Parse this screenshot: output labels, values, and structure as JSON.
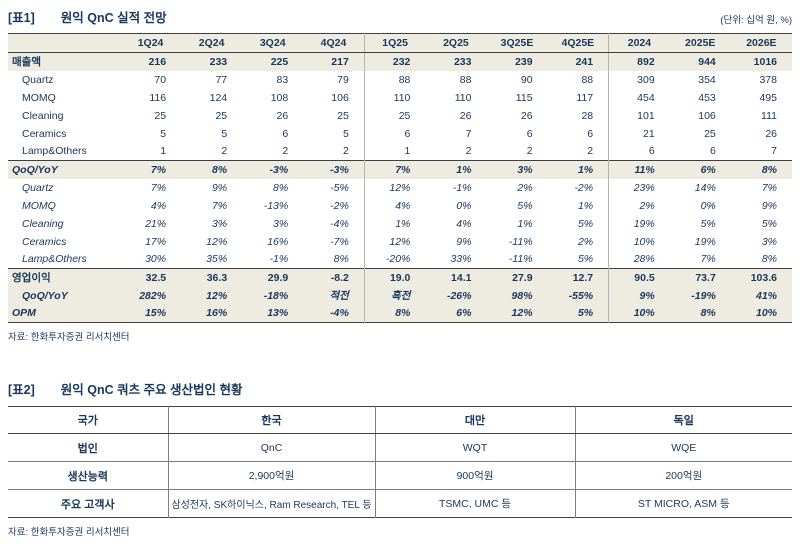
{
  "table1": {
    "tag": "[표1]",
    "title": "원익 QnC 실적 전망",
    "unit_note": "(단위: 십억 원, %)",
    "columns": [
      "1Q24",
      "2Q24",
      "3Q24",
      "4Q24",
      "1Q25",
      "2Q25",
      "3Q25E",
      "4Q25E",
      "2024",
      "2025E",
      "2026E"
    ],
    "rows": [
      {
        "label": "매출액",
        "styles": [
          "bold",
          "highlight"
        ],
        "values": [
          "216",
          "233",
          "225",
          "217",
          "232",
          "233",
          "239",
          "241",
          "892",
          "944",
          "1016"
        ]
      },
      {
        "label": "Quartz",
        "styles": [
          "indent"
        ],
        "values": [
          "70",
          "77",
          "83",
          "79",
          "88",
          "88",
          "90",
          "88",
          "309",
          "354",
          "378"
        ]
      },
      {
        "label": "MOMQ",
        "styles": [
          "indent"
        ],
        "values": [
          "116",
          "124",
          "108",
          "106",
          "110",
          "110",
          "115",
          "117",
          "454",
          "453",
          "495"
        ]
      },
      {
        "label": "Cleaning",
        "styles": [
          "indent"
        ],
        "values": [
          "25",
          "25",
          "26",
          "25",
          "25",
          "26",
          "26",
          "28",
          "101",
          "106",
          "111"
        ]
      },
      {
        "label": "Ceramics",
        "styles": [
          "indent"
        ],
        "values": [
          "5",
          "5",
          "6",
          "5",
          "6",
          "7",
          "6",
          "6",
          "21",
          "25",
          "26"
        ]
      },
      {
        "label": "Lamp&Others",
        "styles": [
          "indent"
        ],
        "values": [
          "1",
          "2",
          "2",
          "2",
          "1",
          "2",
          "2",
          "2",
          "6",
          "6",
          "7"
        ]
      },
      {
        "label": "QoQ/YoY",
        "styles": [
          "bold",
          "italic",
          "highlight",
          "separator"
        ],
        "values": [
          "7%",
          "8%",
          "-3%",
          "-3%",
          "7%",
          "1%",
          "3%",
          "1%",
          "11%",
          "6%",
          "8%"
        ]
      },
      {
        "label": "Quartz",
        "styles": [
          "italic",
          "indent"
        ],
        "values": [
          "7%",
          "9%",
          "8%",
          "-5%",
          "12%",
          "-1%",
          "2%",
          "-2%",
          "23%",
          "14%",
          "7%"
        ]
      },
      {
        "label": "MOMQ",
        "styles": [
          "italic",
          "indent"
        ],
        "values": [
          "4%",
          "7%",
          "-13%",
          "-2%",
          "4%",
          "0%",
          "5%",
          "1%",
          "2%",
          "0%",
          "9%"
        ]
      },
      {
        "label": "Cleaning",
        "styles": [
          "italic",
          "indent"
        ],
        "values": [
          "21%",
          "3%",
          "3%",
          "-4%",
          "1%",
          "4%",
          "1%",
          "5%",
          "19%",
          "5%",
          "5%"
        ]
      },
      {
        "label": "Ceramics",
        "styles": [
          "italic",
          "indent"
        ],
        "values": [
          "17%",
          "12%",
          "16%",
          "-7%",
          "12%",
          "9%",
          "-11%",
          "2%",
          "10%",
          "19%",
          "3%"
        ]
      },
      {
        "label": "Lamp&Others",
        "styles": [
          "italic",
          "indent"
        ],
        "values": [
          "30%",
          "35%",
          "-1%",
          "8%",
          "-20%",
          "33%",
          "-11%",
          "5%",
          "28%",
          "7%",
          "8%"
        ]
      },
      {
        "label": "영업이익",
        "styles": [
          "bold",
          "highlight",
          "separator"
        ],
        "values": [
          "32.5",
          "36.3",
          "29.9",
          "-8.2",
          "19.0",
          "14.1",
          "27.9",
          "12.7",
          "90.5",
          "73.7",
          "103.6"
        ]
      },
      {
        "label": "QoQ/YoY",
        "styles": [
          "bold",
          "italic",
          "highlight",
          "indent"
        ],
        "values": [
          "282%",
          "12%",
          "-18%",
          "적전",
          "흑전",
          "-26%",
          "98%",
          "-55%",
          "9%",
          "-19%",
          "41%"
        ]
      },
      {
        "label": "OPM",
        "styles": [
          "bold",
          "italic",
          "highlight"
        ],
        "values": [
          "15%",
          "16%",
          "13%",
          "-4%",
          "8%",
          "6%",
          "12%",
          "5%",
          "10%",
          "8%",
          "10%"
        ]
      }
    ],
    "source": "자료: 한화투자증권 리서치센터"
  },
  "table2": {
    "tag": "[표2]",
    "title": "원익 QnC 쿼츠 주요 생산법인 현황",
    "columns": [
      "국가",
      "한국",
      "대만",
      "독일"
    ],
    "rows": [
      {
        "label": "법인",
        "values": [
          "QnC",
          "WQT",
          "WQE"
        ]
      },
      {
        "label": "생산능력",
        "values": [
          "2,900억원",
          "900억원",
          "200억원"
        ]
      },
      {
        "label": "주요 고객사",
        "values": [
          "삼성전자, SK하이닉스, Ram Research, TEL 등",
          "TSMC, UMC 등",
          "ST MICRO, ASM 등"
        ]
      }
    ],
    "source": "자료: 한화투자증권 리서치센터"
  },
  "colors": {
    "text_navy": "#17375d",
    "row_highlight": "#eeece1",
    "rule_dark": "#3f3f3f",
    "rule_gray": "#7f7f7f"
  }
}
